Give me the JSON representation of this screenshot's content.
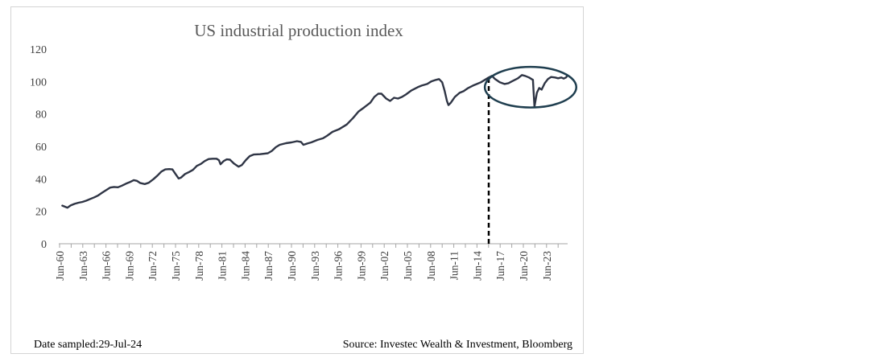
{
  "chart_data": {
    "type": "line",
    "title": "US industrial production index",
    "xlabel": "",
    "ylabel": "",
    "ylim": [
      0,
      120
    ],
    "yticks": [
      0,
      20,
      40,
      60,
      80,
      100,
      120
    ],
    "x_range": [
      1960.0,
      2024.5
    ],
    "x_tick_labels": [
      "Jun-60",
      "Jun-63",
      "Jun-66",
      "Jun-69",
      "Jun-72",
      "Jun-75",
      "Jun-78",
      "Jun-81",
      "Jun-84",
      "Jun-87",
      "Jun-90",
      "Jun-93",
      "Jun-96",
      "Jun-99",
      "Jun-02",
      "Jun-05",
      "Jun-08",
      "Jun-11",
      "Jun-14",
      "Jun-17",
      "Jun-20",
      "Jun-23"
    ],
    "grid": false,
    "legend": "none",
    "line_color": "#2f3545",
    "series": [
      {
        "name": "",
        "points": [
          [
            1960.45,
            23.5
          ],
          [
            1960.8,
            22.8
          ],
          [
            1961.1,
            22.2
          ],
          [
            1961.5,
            23.6
          ],
          [
            1962.0,
            24.6
          ],
          [
            1962.5,
            25.3
          ],
          [
            1963.0,
            25.8
          ],
          [
            1963.5,
            26.6
          ],
          [
            1964.0,
            27.6
          ],
          [
            1964.5,
            28.6
          ],
          [
            1965.0,
            29.8
          ],
          [
            1965.5,
            31.5
          ],
          [
            1966.0,
            33.0
          ],
          [
            1966.5,
            34.6
          ],
          [
            1967.0,
            35.0
          ],
          [
            1967.5,
            34.8
          ],
          [
            1968.0,
            35.8
          ],
          [
            1968.5,
            37.0
          ],
          [
            1969.0,
            38.0
          ],
          [
            1969.5,
            39.2
          ],
          [
            1969.9,
            38.8
          ],
          [
            1970.3,
            37.5
          ],
          [
            1970.9,
            36.8
          ],
          [
            1971.4,
            37.6
          ],
          [
            1972.0,
            39.8
          ],
          [
            1972.5,
            42.0
          ],
          [
            1973.0,
            44.5
          ],
          [
            1973.5,
            45.8
          ],
          [
            1974.0,
            46.0
          ],
          [
            1974.4,
            45.8
          ],
          [
            1974.8,
            43.0
          ],
          [
            1975.2,
            40.2
          ],
          [
            1975.5,
            40.8
          ],
          [
            1976.0,
            43.0
          ],
          [
            1976.5,
            44.2
          ],
          [
            1977.0,
            45.5
          ],
          [
            1977.5,
            48.0
          ],
          [
            1978.0,
            49.2
          ],
          [
            1978.5,
            51.0
          ],
          [
            1979.0,
            52.2
          ],
          [
            1979.5,
            52.4
          ],
          [
            1980.0,
            52.4
          ],
          [
            1980.3,
            51.5
          ],
          [
            1980.5,
            49.0
          ],
          [
            1980.9,
            51.0
          ],
          [
            1981.3,
            52.0
          ],
          [
            1981.7,
            51.8
          ],
          [
            1982.2,
            49.5
          ],
          [
            1982.8,
            47.5
          ],
          [
            1983.2,
            48.5
          ],
          [
            1983.7,
            51.5
          ],
          [
            1984.2,
            54.0
          ],
          [
            1984.7,
            55.0
          ],
          [
            1985.5,
            55.2
          ],
          [
            1986.5,
            55.8
          ],
          [
            1987.0,
            57.2
          ],
          [
            1987.5,
            59.5
          ],
          [
            1988.0,
            61.0
          ],
          [
            1988.8,
            62.0
          ],
          [
            1989.5,
            62.5
          ],
          [
            1990.2,
            63.2
          ],
          [
            1990.7,
            62.8
          ],
          [
            1991.0,
            61.0
          ],
          [
            1991.5,
            61.8
          ],
          [
            1992.0,
            62.5
          ],
          [
            1992.8,
            64.0
          ],
          [
            1993.5,
            65.0
          ],
          [
            1994.0,
            66.5
          ],
          [
            1994.7,
            69.0
          ],
          [
            1995.5,
            70.5
          ],
          [
            1996.5,
            73.5
          ],
          [
            1997.3,
            77.5
          ],
          [
            1998.0,
            81.5
          ],
          [
            1998.7,
            84.0
          ],
          [
            1999.5,
            87.0
          ],
          [
            2000.0,
            90.5
          ],
          [
            2000.5,
            92.5
          ],
          [
            2000.9,
            92.5
          ],
          [
            2001.5,
            89.5
          ],
          [
            2002.0,
            88.0
          ],
          [
            2002.5,
            90.0
          ],
          [
            2003.0,
            89.5
          ],
          [
            2003.5,
            90.5
          ],
          [
            2004.0,
            92.0
          ],
          [
            2004.7,
            94.5
          ],
          [
            2005.5,
            96.5
          ],
          [
            2006.0,
            97.5
          ],
          [
            2006.7,
            98.5
          ],
          [
            2007.2,
            100.0
          ],
          [
            2007.8,
            101.0
          ],
          [
            2008.2,
            101.5
          ],
          [
            2008.6,
            99.5
          ],
          [
            2008.9,
            94.5
          ],
          [
            2009.2,
            88.0
          ],
          [
            2009.4,
            85.5
          ],
          [
            2009.7,
            87.0
          ],
          [
            2010.2,
            90.5
          ],
          [
            2010.8,
            93.0
          ],
          [
            2011.3,
            94.0
          ],
          [
            2011.9,
            96.0
          ],
          [
            2012.5,
            97.5
          ],
          [
            2013.0,
            98.5
          ],
          [
            2013.5,
            99.5
          ],
          [
            2014.0,
            101.0
          ],
          [
            2014.5,
            102.5
          ],
          [
            2014.9,
            103.5
          ],
          [
            2015.3,
            101.5
          ],
          [
            2015.9,
            99.5
          ],
          [
            2016.5,
            98.5
          ],
          [
            2017.0,
            99.0
          ],
          [
            2017.6,
            100.5
          ],
          [
            2018.2,
            102.0
          ],
          [
            2018.7,
            104.0
          ],
          [
            2019.1,
            103.5
          ],
          [
            2019.6,
            102.5
          ],
          [
            2020.1,
            101.0
          ],
          [
            2020.3,
            84.5
          ],
          [
            2020.6,
            93.0
          ],
          [
            2020.9,
            96.0
          ],
          [
            2021.2,
            95.0
          ],
          [
            2021.6,
            99.0
          ],
          [
            2022.0,
            101.5
          ],
          [
            2022.4,
            102.8
          ],
          [
            2022.9,
            102.5
          ],
          [
            2023.3,
            102.0
          ],
          [
            2023.7,
            102.5
          ],
          [
            2024.0,
            101.8
          ],
          [
            2024.3,
            102.5
          ],
          [
            2024.45,
            103.5
          ]
        ]
      }
    ],
    "annotations": {
      "dashed_line_x": 2014.5,
      "dashed_line_top": 102.5,
      "ellipse": {
        "x_center": 2019.8,
        "y_center": 96.5,
        "x_radius": 5.8,
        "y_radius": 12.5
      }
    }
  },
  "footer": {
    "left": "Date sampled:29-Jul-24",
    "right": "Source: Investec Wealth & Investment, Bloomberg"
  }
}
